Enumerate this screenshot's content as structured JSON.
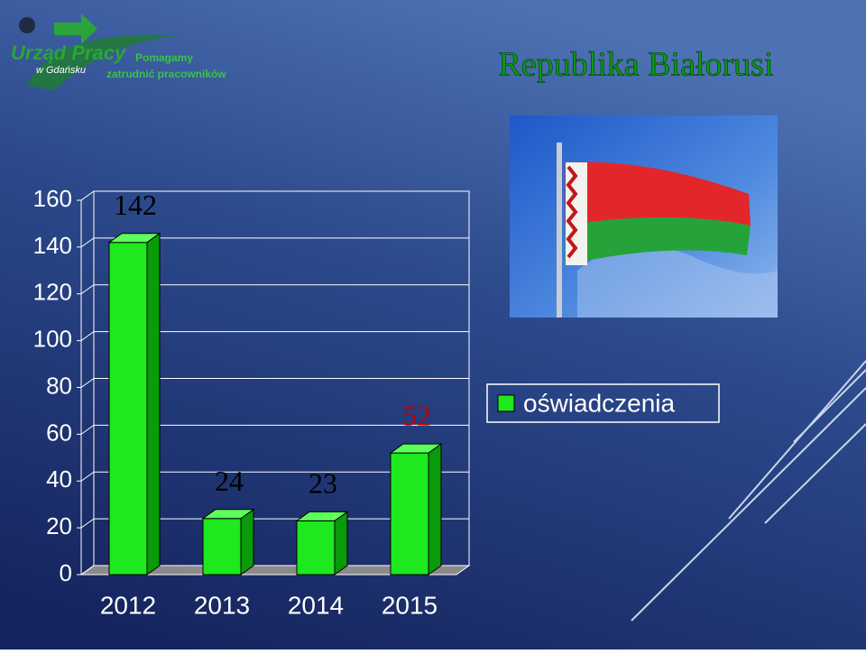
{
  "header": {
    "logo_name": "Urząd Pracy",
    "logo_place": "w Gdańsku",
    "slogan_line1": "Pomagamy",
    "slogan_line2": "zatrudnić pracowników"
  },
  "chart_data": {
    "type": "bar",
    "title": "Republika Białorusi",
    "categories": [
      "2012",
      "2013",
      "2014",
      "2015"
    ],
    "series": [
      {
        "name": "oświadczenia",
        "color": "#1ee81e",
        "values": [
          142,
          24,
          23,
          52
        ]
      }
    ],
    "value_label_colors": [
      "#000000",
      "#000000",
      "#000000",
      "#c00000"
    ],
    "ylim": [
      0,
      160
    ],
    "yticks": [
      0,
      20,
      40,
      60,
      80,
      100,
      120,
      140,
      160
    ],
    "grid": true,
    "legend": "right"
  }
}
